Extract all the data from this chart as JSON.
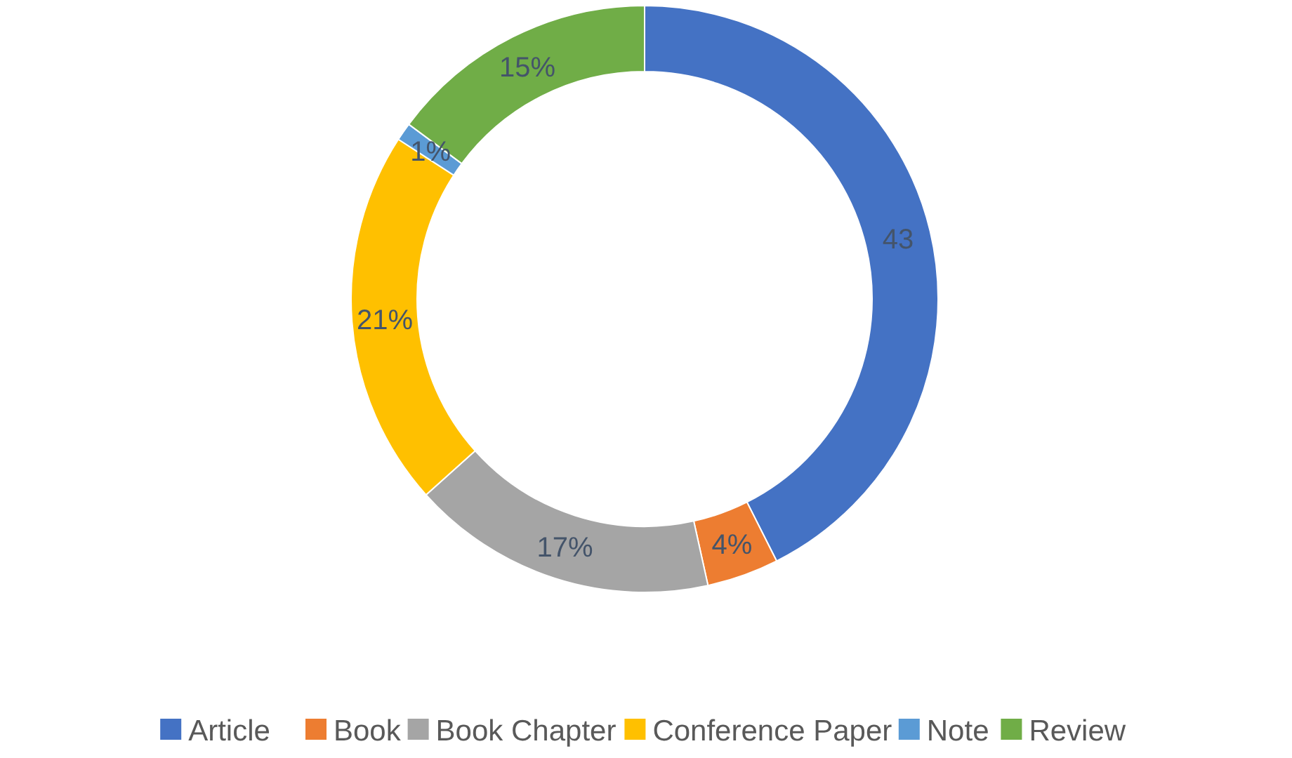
{
  "chart_data": {
    "type": "donut",
    "categories": [
      "Article",
      "Book",
      "Book Chapter",
      "Conference Paper",
      "Note",
      "Review"
    ],
    "values": [
      43,
      4,
      17,
      21,
      1,
      15
    ],
    "value_labels": [
      "43",
      "4%",
      "17%",
      "21%",
      "1%",
      "15%"
    ],
    "colors": [
      "#4472c4",
      "#ed7d31",
      "#a5a5a5",
      "#ffc000",
      "#5b9bd5",
      "#70ad47"
    ],
    "legend": "bottom"
  }
}
